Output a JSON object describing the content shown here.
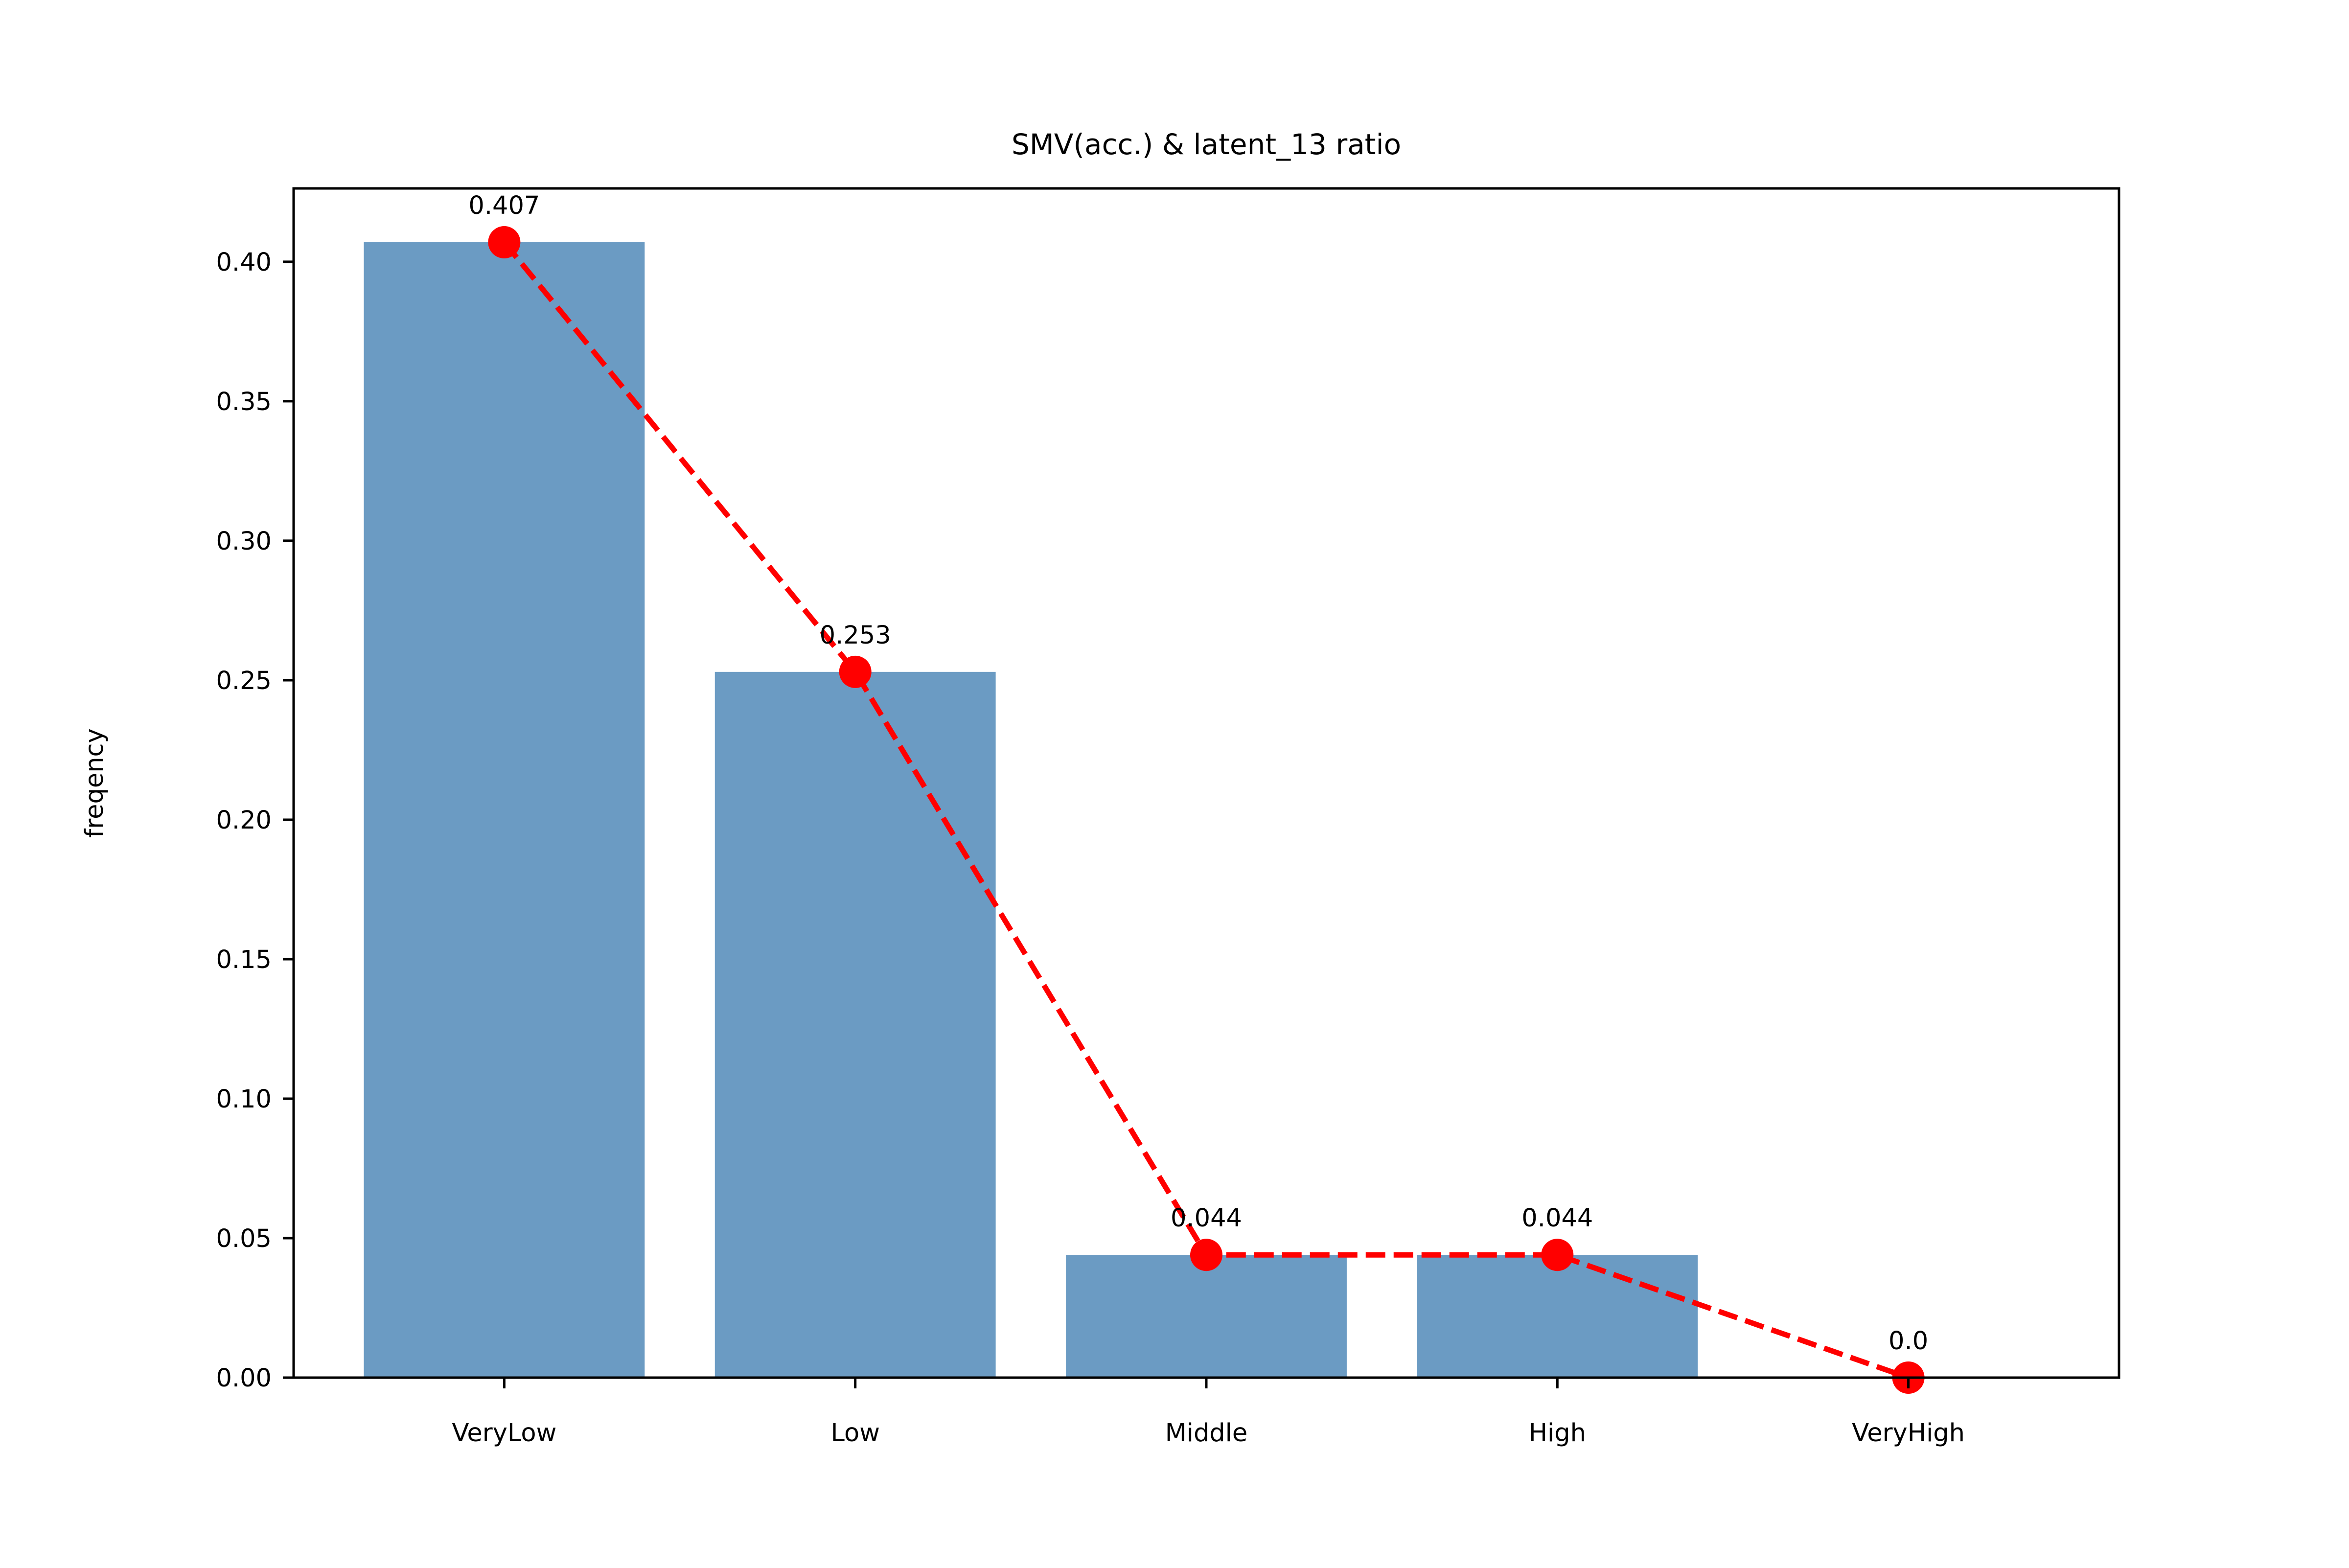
{
  "chart_data": {
    "type": "bar",
    "title": "SMV(acc.) & latent_13 ratio",
    "xlabel": "",
    "ylabel": "freqency",
    "categories": [
      "VeryLow",
      "Low",
      "Middle",
      "High",
      "VeryHigh"
    ],
    "values": [
      0.407,
      0.253,
      0.044,
      0.044,
      0.0
    ],
    "value_labels": [
      "0.407",
      "0.253",
      "0.044",
      "0.044",
      "0.0"
    ],
    "ylim": [
      0,
      0.4263
    ],
    "yticks": [
      0.0,
      0.05,
      0.1,
      0.15,
      0.2,
      0.25,
      0.3,
      0.35,
      0.4
    ],
    "ytick_labels": [
      "0.00",
      "0.05",
      "0.10",
      "0.15",
      "0.20",
      "0.25",
      "0.30",
      "0.35",
      "0.40"
    ],
    "grid": false,
    "bar_color": "#6b9bc3",
    "line_overlay": {
      "values": [
        0.407,
        0.253,
        0.044,
        0.044,
        0.0
      ],
      "color": "#ff0000",
      "style": "dashed",
      "markers": true
    }
  }
}
